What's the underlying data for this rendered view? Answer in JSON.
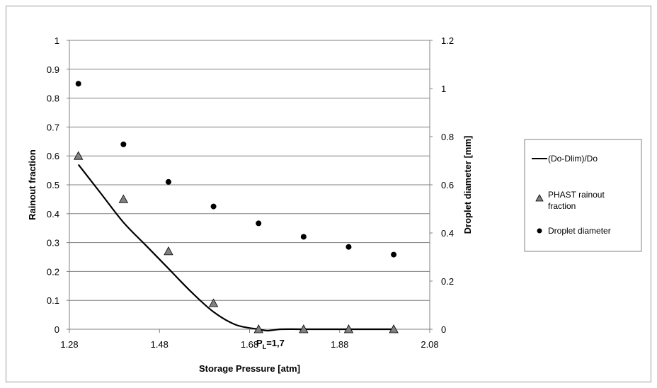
{
  "chart_data": {
    "type": "scatter",
    "title": "",
    "xlabel": "Storage Pressure [atm]",
    "ylabel_left": "Rainout fraction",
    "ylabel_right": "Droplet diameter [mm]",
    "xlim": [
      1.28,
      2.08
    ],
    "ylim_left": [
      0,
      1
    ],
    "ylim_right": [
      0,
      1.2
    ],
    "x_ticks": [
      "1.28",
      "1.48",
      "1.68",
      "1.88",
      "2.08"
    ],
    "y_left_ticks": [
      "0",
      "0.1",
      "0.2",
      "0.3",
      "0.4",
      "0.5",
      "0.6",
      "0.7",
      "0.8",
      "0.9",
      "1"
    ],
    "y_right_ticks": [
      "0",
      "0.2",
      "0.4",
      "0.6",
      "0.8",
      "1",
      "1.2"
    ],
    "grid": true,
    "legend_position": "right",
    "series": [
      {
        "name": "(Do-Dlim)/Do",
        "kind": "line",
        "axis": "left",
        "color": "#000000",
        "x": [
          1.3,
          1.35,
          1.4,
          1.45,
          1.5,
          1.55,
          1.6,
          1.65,
          1.7,
          1.72,
          1.75,
          1.8,
          1.9,
          2.0
        ],
        "y": [
          0.57,
          0.47,
          0.37,
          0.29,
          0.21,
          0.13,
          0.06,
          0.015,
          0.0,
          -0.005,
          0.0,
          0.0,
          0.0,
          0.0
        ]
      },
      {
        "name": "PHAST rainout fraction",
        "kind": "triangle",
        "axis": "left",
        "color": "#808080",
        "x": [
          1.3,
          1.4,
          1.5,
          1.6,
          1.7,
          1.8,
          1.9,
          2.0
        ],
        "y": [
          0.6,
          0.45,
          0.27,
          0.09,
          0.0,
          0.0,
          0.0,
          0.0
        ]
      },
      {
        "name": "Droplet diameter",
        "kind": "dot",
        "axis": "right",
        "color": "#000000",
        "x": [
          1.3,
          1.4,
          1.5,
          1.6,
          1.7,
          1.8,
          1.9,
          2.0
        ],
        "y": [
          1.02,
          0.768,
          0.612,
          0.51,
          0.44,
          0.384,
          0.342,
          0.31
        ]
      }
    ],
    "annotation": {
      "main": "P",
      "sub": "L",
      "rest": "=1,7"
    }
  }
}
